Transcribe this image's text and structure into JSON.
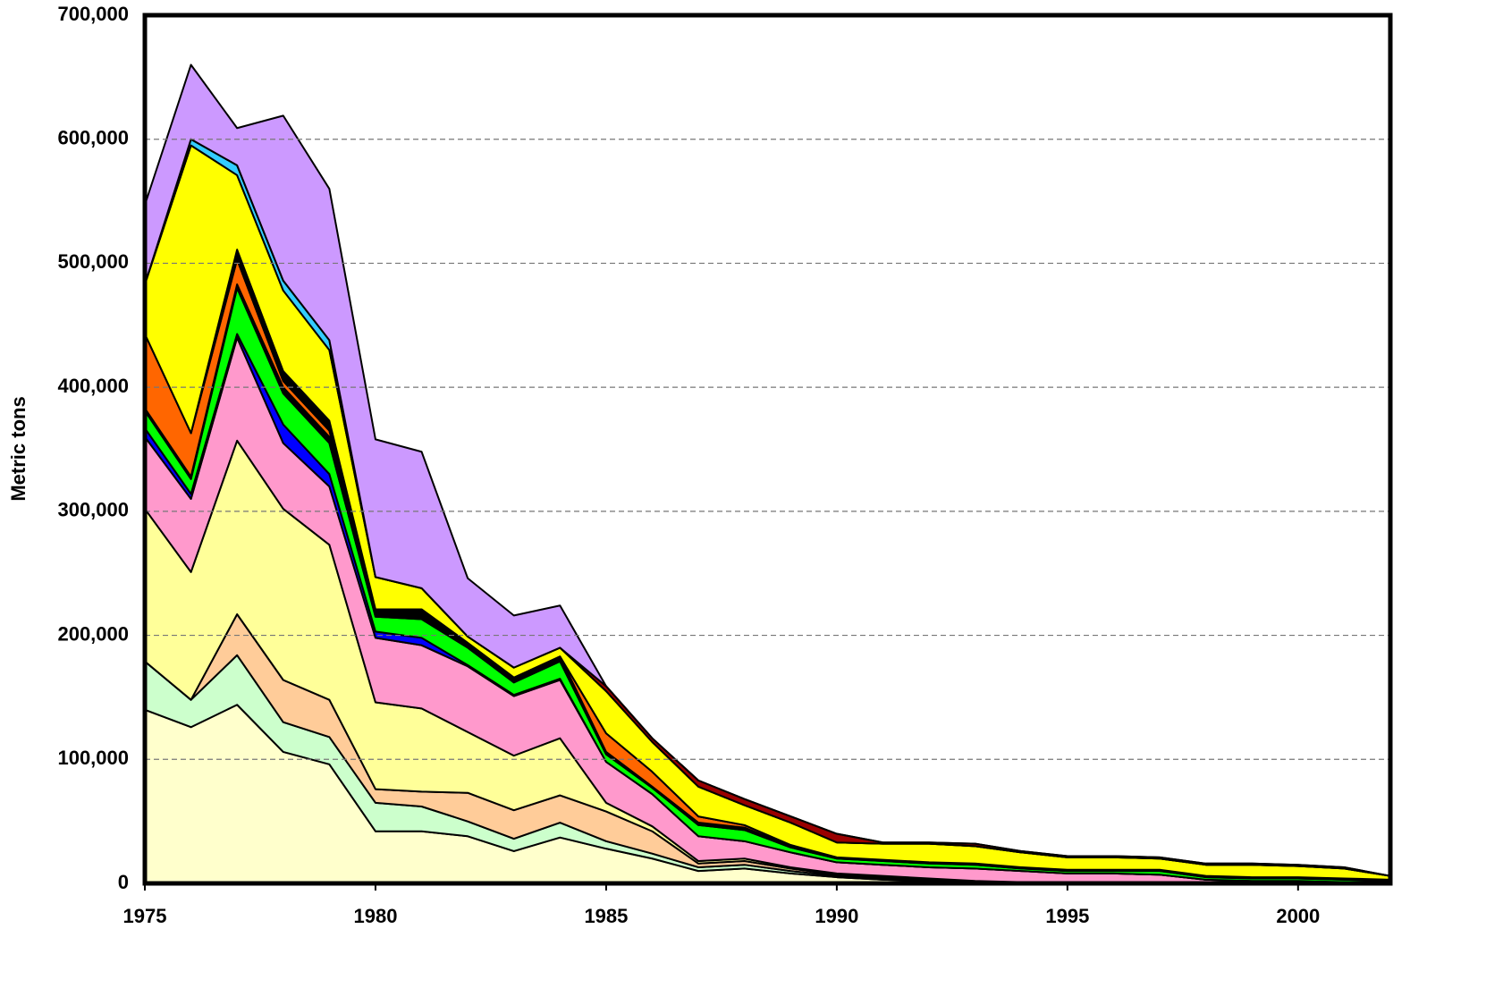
{
  "chart_data": {
    "type": "stacked_area",
    "y_label": "Metric tons",
    "x": [
      1975,
      1976,
      1977,
      1978,
      1979,
      1980,
      1981,
      1982,
      1983,
      1984,
      1985,
      1986,
      1987,
      1988,
      1989,
      1990,
      1991,
      1992,
      1993,
      1994,
      1995,
      1996,
      1997,
      1998,
      1999,
      2000,
      2001,
      2002
    ],
    "xlim": [
      1975,
      2002
    ],
    "xticks": [
      1975,
      1980,
      1985,
      1990,
      1995,
      2000
    ],
    "ylim": [
      0,
      700000
    ],
    "yticks": [
      0,
      {
        "value": 100000,
        "label": "100,000"
      },
      {
        "value": 200000,
        "label": "200,000"
      },
      {
        "value": 300000,
        "label": "300,000"
      },
      {
        "value": 400000,
        "label": "400,000"
      },
      {
        "value": 500000,
        "label": "500,000"
      },
      {
        "value": 600000,
        "label": "600,000"
      },
      {
        "value": 700000,
        "label": "700,000"
      }
    ],
    "grid": true,
    "series": [
      {
        "color": "#ffffcc",
        "values": [
          140000,
          126000,
          144000,
          106000,
          96000,
          42000,
          42000,
          38000,
          26000,
          37000,
          28000,
          20000,
          10000,
          12000,
          8000,
          5000,
          3000,
          2000,
          1000,
          1000,
          1000,
          1000,
          1000,
          0,
          0,
          0,
          0,
          0
        ]
      },
      {
        "color": "#ccffcc",
        "values": [
          39000,
          22000,
          40000,
          24000,
          22000,
          23000,
          20000,
          12000,
          10000,
          12000,
          6000,
          4000,
          3000,
          3000,
          2000,
          1000,
          1000,
          1000,
          0,
          0,
          0,
          0,
          0,
          0,
          0,
          0,
          0,
          0
        ]
      },
      {
        "color": "#ffcc99",
        "values": [
          0,
          0,
          33000,
          34000,
          30000,
          11000,
          12000,
          23000,
          23000,
          22000,
          24000,
          18000,
          3000,
          3000,
          2000,
          1000,
          1000,
          0,
          0,
          0,
          0,
          0,
          0,
          0,
          0,
          0,
          0,
          0
        ]
      },
      {
        "color": "#ffff99",
        "values": [
          123000,
          103000,
          140000,
          138000,
          125000,
          70000,
          67000,
          49000,
          44000,
          46000,
          7000,
          4000,
          2000,
          2000,
          1000,
          1000,
          1000,
          1000,
          1000,
          0,
          0,
          0,
          0,
          0,
          0,
          0,
          0,
          0
        ]
      },
      {
        "color": "#ff99cc",
        "values": [
          58000,
          59000,
          83000,
          53000,
          47000,
          52000,
          51000,
          53000,
          48000,
          47000,
          33000,
          26000,
          20000,
          14000,
          12000,
          9000,
          9000,
          9000,
          10000,
          9000,
          7000,
          7000,
          6000,
          3000,
          2000,
          2000,
          1000,
          1000
        ]
      },
      {
        "color": "#0000ff",
        "values": [
          7000,
          4000,
          3000,
          15000,
          10000,
          5000,
          6000,
          1000,
          1000,
          1000,
          0,
          0,
          0,
          0,
          0,
          0,
          0,
          0,
          0,
          0,
          0,
          0,
          0,
          0,
          0,
          0,
          0,
          0
        ]
      },
      {
        "color": "#00ff00",
        "values": [
          14000,
          12000,
          37000,
          25000,
          25000,
          12000,
          15000,
          14000,
          10000,
          14000,
          6000,
          5000,
          9000,
          9000,
          4000,
          3000,
          3000,
          3000,
          3000,
          2000,
          2000,
          2000,
          3000,
          2000,
          2000,
          2000,
          2000,
          1000
        ]
      },
      {
        "color": "#000000",
        "values": [
          2000,
          2000,
          3000,
          5000,
          5000,
          6000,
          8000,
          4000,
          4000,
          4000,
          2000,
          1000,
          2000,
          2000,
          1000,
          1000,
          1000,
          1000,
          1000,
          1000,
          1000,
          1000,
          1000,
          1000,
          1000,
          1000,
          1000,
          1000
        ]
      },
      {
        "color": "#ff6600",
        "values": [
          60000,
          35000,
          20000,
          5000,
          5000,
          0,
          0,
          0,
          0,
          0,
          15000,
          12000,
          5000,
          2000,
          1000,
          0,
          0,
          0,
          0,
          0,
          0,
          0,
          0,
          0,
          0,
          0,
          0,
          0
        ]
      },
      {
        "color": "#000000",
        "values": [
          0,
          0,
          8000,
          8000,
          8000,
          0,
          0,
          0,
          0,
          0,
          0,
          0,
          0,
          0,
          0,
          0,
          0,
          0,
          0,
          0,
          0,
          0,
          0,
          0,
          0,
          0,
          0,
          0
        ]
      },
      {
        "color": "#ffff00",
        "values": [
          40000,
          232000,
          60000,
          65000,
          57000,
          26000,
          17000,
          5000,
          8000,
          7000,
          34000,
          24000,
          24000,
          16000,
          18000,
          12000,
          13000,
          15000,
          14000,
          12000,
          10000,
          10000,
          9000,
          9000,
          10000,
          9000,
          8000,
          3000
        ]
      },
      {
        "color": "#33ccff",
        "values": [
          0,
          5000,
          8000,
          8000,
          8000,
          0,
          0,
          0,
          0,
          0,
          0,
          0,
          0,
          0,
          0,
          0,
          0,
          0,
          0,
          0,
          0,
          0,
          0,
          0,
          0,
          0,
          0,
          0
        ]
      },
      {
        "color": "#990000",
        "values": [
          0,
          0,
          0,
          0,
          0,
          0,
          0,
          0,
          0,
          0,
          4000,
          3000,
          5000,
          5000,
          5000,
          7000,
          1000,
          1000,
          2000,
          1000,
          1000,
          1000,
          1000,
          1000,
          1000,
          1000,
          1000,
          0
        ]
      },
      {
        "color": "#cc99ff",
        "values": [
          64000,
          60000,
          30000,
          133000,
          122000,
          111000,
          110000,
          47000,
          42000,
          34000,
          0,
          0,
          0,
          0,
          0,
          0,
          0,
          0,
          0,
          0,
          0,
          0,
          0,
          0,
          0,
          0,
          0,
          0
        ]
      }
    ]
  }
}
